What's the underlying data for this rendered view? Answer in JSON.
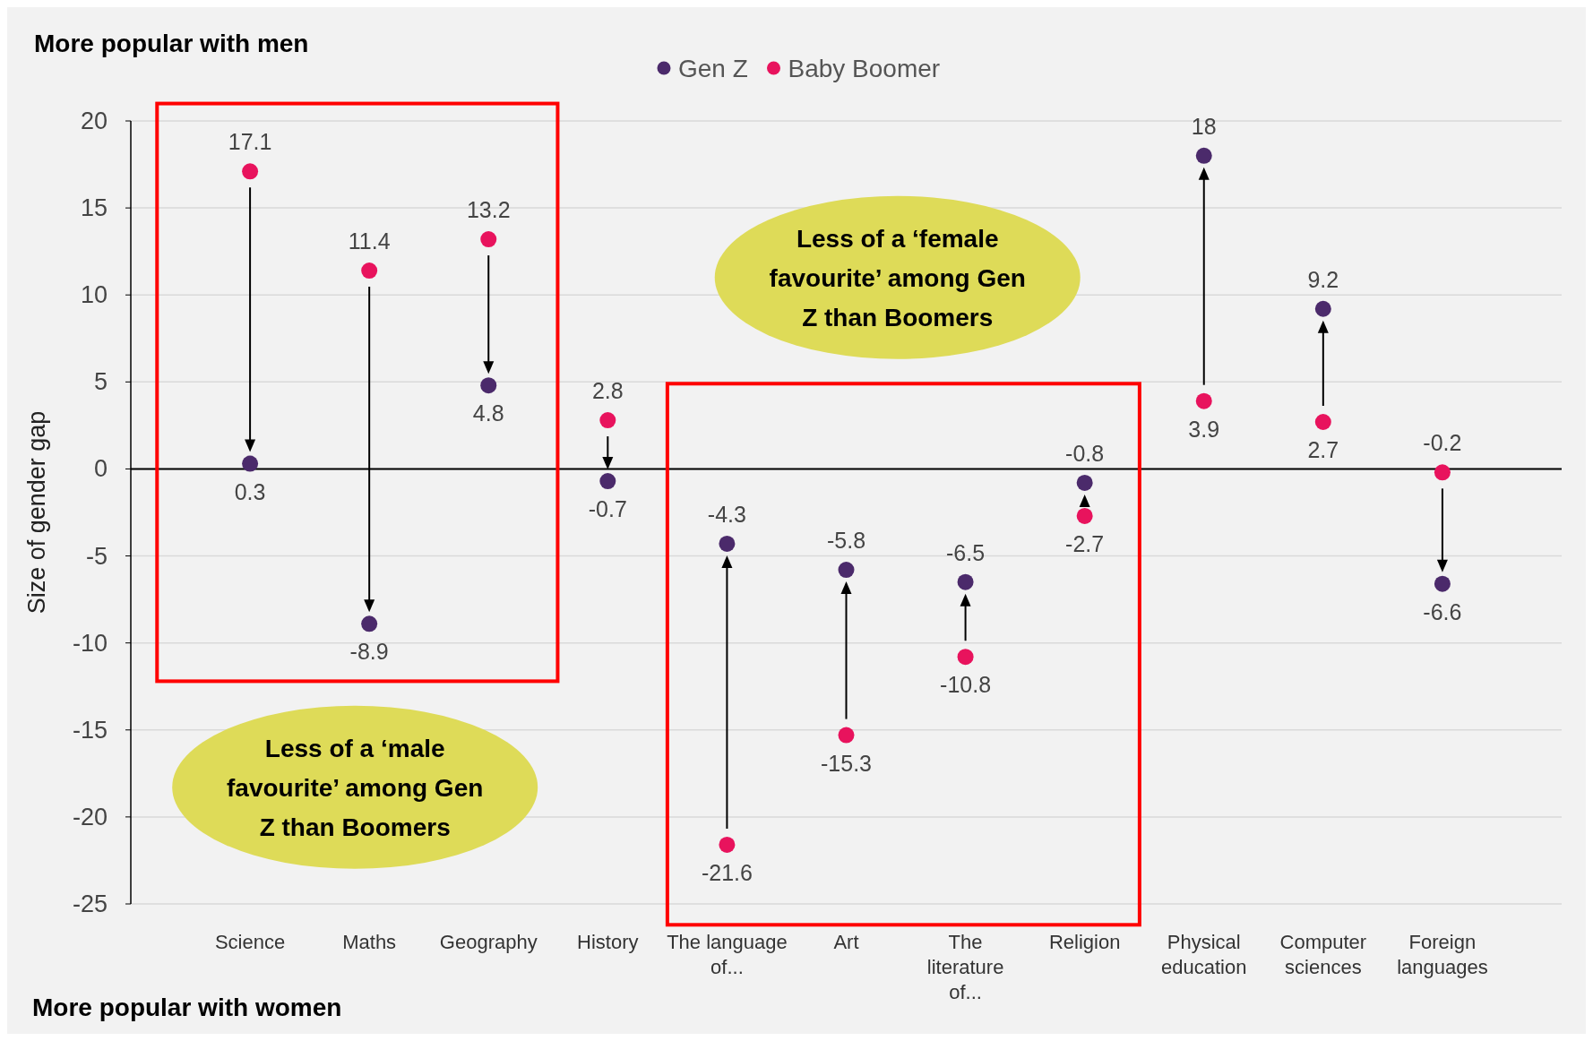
{
  "chart_data": {
    "type": "scatter",
    "ylabel": "Size of gender gap",
    "categories": [
      "Science",
      "Maths",
      "Geography",
      "History",
      "The language of...",
      "Art",
      "The literature of...",
      "Religion",
      "Physical education",
      "Computer sciences",
      "Foreign languages"
    ],
    "series": [
      {
        "name": "Gen Z",
        "color": "#4b2a6b",
        "values": [
          0.3,
          -8.9,
          4.8,
          -0.7,
          -4.3,
          -5.8,
          -6.5,
          -0.8,
          18,
          9.2,
          -6.6
        ]
      },
      {
        "name": "Baby Boomer",
        "color": "#e8135d",
        "values": [
          17.1,
          11.4,
          13.2,
          2.8,
          -21.6,
          -15.3,
          -10.8,
          -2.7,
          3.9,
          2.7,
          -0.2
        ]
      }
    ],
    "ylim": [
      -25,
      20
    ],
    "yticks": [
      -25,
      -20,
      -15,
      -10,
      -5,
      0,
      5,
      10,
      15,
      20
    ],
    "grid": "y",
    "legend": "top",
    "marker": "circle",
    "data_labels": true,
    "annotations": [
      "More popular with men",
      "More popular with women",
      "Less of a ‘female favourite’ among Gen Z than Boomers",
      "Less of a ‘male favourite’ among Gen Z than Boomers"
    ]
  }
}
